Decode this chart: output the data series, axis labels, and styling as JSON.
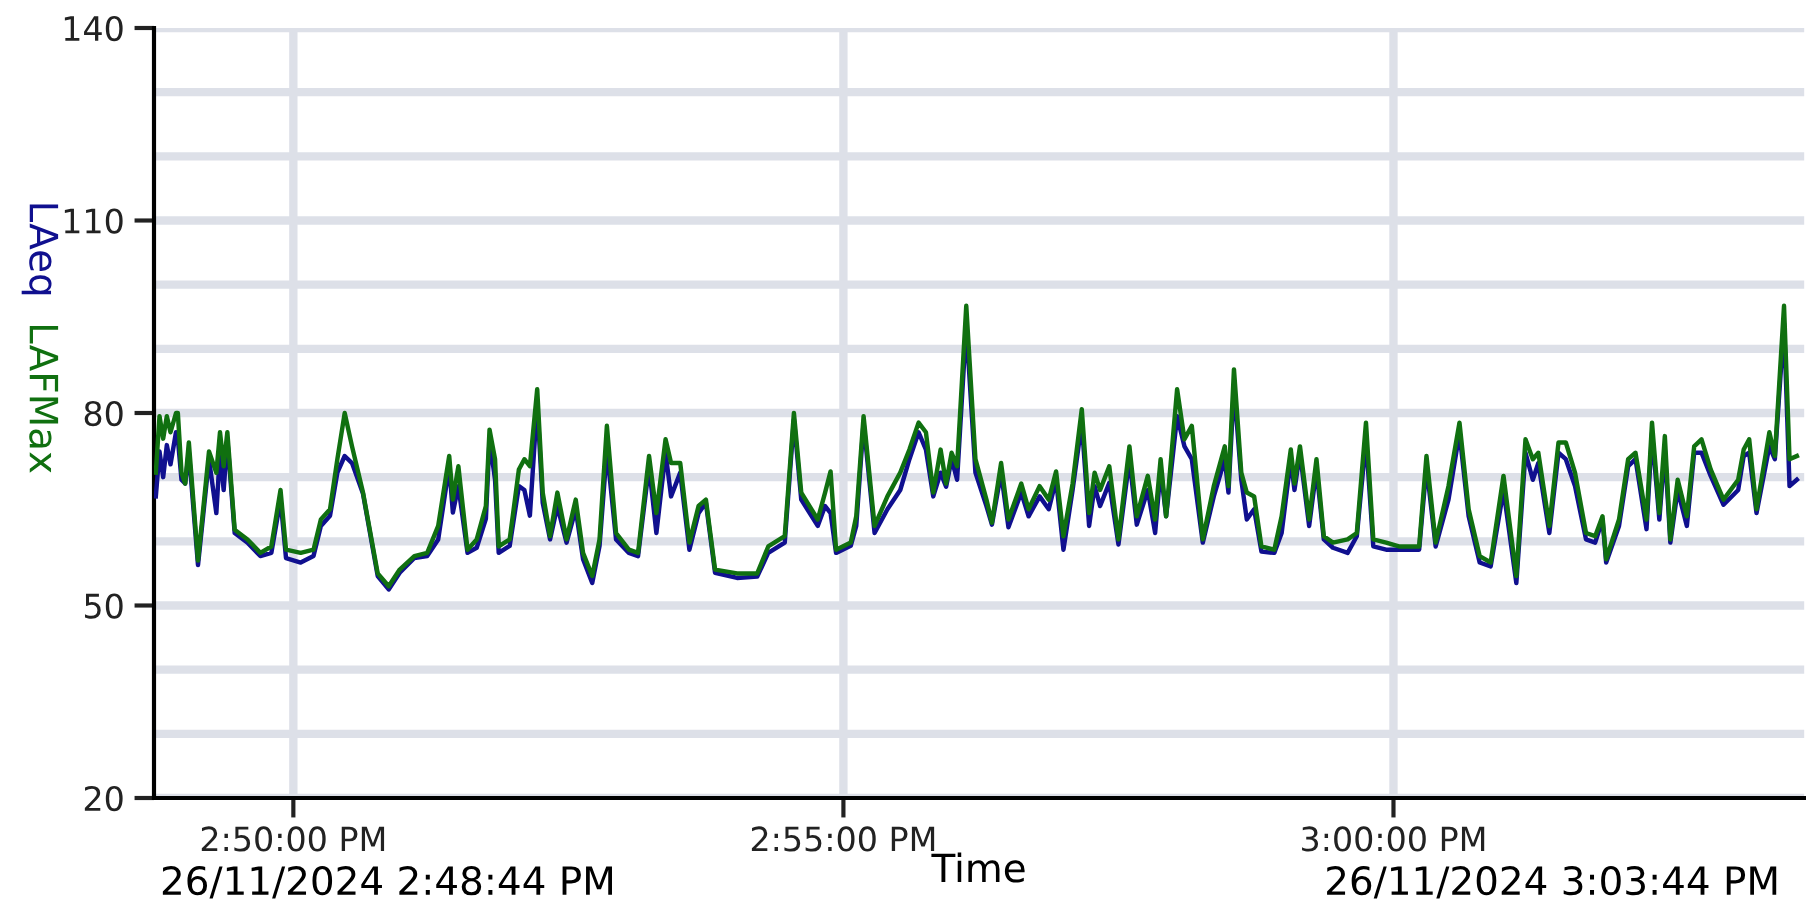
{
  "chart_data": {
    "type": "line",
    "xlabel": "Time",
    "annotations": [
      "26/11/2024 2:48:44 PM",
      "26/11/2024 3:03:44 PM"
    ],
    "x": [
      "2024-11-26T14:48:45",
      "2024-11-26T14:48:47",
      "2024-11-26T14:48:49",
      "2024-11-26T14:48:51",
      "2024-11-26T14:48:53",
      "2024-11-26T14:48:56",
      "2024-11-26T14:48:57",
      "2024-11-26T14:48:59",
      "2024-11-26T14:49:01",
      "2024-11-26T14:49:03",
      "2024-11-26T14:49:08",
      "2024-11-26T14:49:14",
      "2024-11-26T14:49:18",
      "2024-11-26T14:49:20",
      "2024-11-26T14:49:22",
      "2024-11-26T14:49:24",
      "2024-11-26T14:49:28",
      "2024-11-26T14:49:35",
      "2024-11-26T14:49:42",
      "2024-11-26T14:49:48",
      "2024-11-26T14:49:53",
      "2024-11-26T14:49:56",
      "2024-11-26T14:50:04",
      "2024-11-26T14:50:11",
      "2024-11-26T14:50:15",
      "2024-11-26T14:50:20",
      "2024-11-26T14:50:24",
      "2024-11-26T14:50:28",
      "2024-11-26T14:50:32",
      "2024-11-26T14:50:38",
      "2024-11-26T14:50:46",
      "2024-11-26T14:50:52",
      "2024-11-26T14:50:58",
      "2024-11-26T14:51:06",
      "2024-11-26T14:51:13",
      "2024-11-26T14:51:19",
      "2024-11-26T14:51:25",
      "2024-11-26T14:51:27",
      "2024-11-26T14:51:30",
      "2024-11-26T14:51:35",
      "2024-11-26T14:51:40",
      "2024-11-26T14:51:45",
      "2024-11-26T14:51:47",
      "2024-11-26T14:51:50",
      "2024-11-26T14:51:52",
      "2024-11-26T14:51:58",
      "2024-11-26T14:52:03",
      "2024-11-26T14:52:06",
      "2024-11-26T14:52:09",
      "2024-11-26T14:52:13",
      "2024-11-26T14:52:16",
      "2024-11-26T14:52:20",
      "2024-11-26T14:52:24",
      "2024-11-26T14:52:29",
      "2024-11-26T14:52:34",
      "2024-11-26T14:52:38",
      "2024-11-26T14:52:43",
      "2024-11-26T14:52:47",
      "2024-11-26T14:52:51",
      "2024-11-26T14:52:56",
      "2024-11-26T14:53:03",
      "2024-11-26T14:53:08",
      "2024-11-26T14:53:14",
      "2024-11-26T14:53:18",
      "2024-11-26T14:53:23",
      "2024-11-26T14:53:26",
      "2024-11-26T14:53:31",
      "2024-11-26T14:53:36",
      "2024-11-26T14:53:41",
      "2024-11-26T14:53:45",
      "2024-11-26T14:53:50",
      "2024-11-26T14:54:02",
      "2024-11-26T14:54:13",
      "2024-11-26T14:54:19",
      "2024-11-26T14:54:28",
      "2024-11-26T14:54:33",
      "2024-11-26T14:54:37",
      "2024-11-26T14:54:46",
      "2024-11-26T14:54:50",
      "2024-11-26T14:54:53",
      "2024-11-26T14:54:56",
      "2024-11-26T14:55:04",
      "2024-11-26T14:55:07",
      "2024-11-26T14:55:11",
      "2024-11-26T14:55:17",
      "2024-11-26T14:55:24",
      "2024-11-26T14:55:31",
      "2024-11-26T14:55:36",
      "2024-11-26T14:55:41",
      "2024-11-26T14:55:45",
      "2024-11-26T14:55:49",
      "2024-11-26T14:55:53",
      "2024-11-26T14:55:56",
      "2024-11-26T14:55:59",
      "2024-11-26T14:56:02",
      "2024-11-26T14:56:07",
      "2024-11-26T14:56:12",
      "2024-11-26T14:56:18",
      "2024-11-26T14:56:21",
      "2024-11-26T14:56:26",
      "2024-11-26T14:56:30",
      "2024-11-26T14:56:37",
      "2024-11-26T14:56:41",
      "2024-11-26T14:56:47",
      "2024-11-26T14:56:52",
      "2024-11-26T14:56:56",
      "2024-11-26T14:57:00",
      "2024-11-26T14:57:05",
      "2024-11-26T14:57:10",
      "2024-11-26T14:57:14",
      "2024-11-26T14:57:17",
      "2024-11-26T14:57:20",
      "2024-11-26T14:57:25",
      "2024-11-26T14:57:30",
      "2024-11-26T14:57:36",
      "2024-11-26T14:57:40",
      "2024-11-26T14:57:46",
      "2024-11-26T14:57:50",
      "2024-11-26T14:57:53",
      "2024-11-26T14:57:56",
      "2024-11-26T14:58:02",
      "2024-11-26T14:58:06",
      "2024-11-26T14:58:10",
      "2024-11-26T14:58:16",
      "2024-11-26T14:58:22",
      "2024-11-26T14:58:28",
      "2024-11-26T14:58:30",
      "2024-11-26T14:58:33",
      "2024-11-26T14:58:37",
      "2024-11-26T14:58:40",
      "2024-11-26T14:58:44",
      "2024-11-26T14:58:48",
      "2024-11-26T14:58:55",
      "2024-11-26T14:58:59",
      "2024-11-26T14:59:04",
      "2024-11-26T14:59:06",
      "2024-11-26T14:59:09",
      "2024-11-26T14:59:14",
      "2024-11-26T14:59:18",
      "2024-11-26T14:59:22",
      "2024-11-26T14:59:27",
      "2024-11-26T14:59:35",
      "2024-11-26T14:59:40",
      "2024-11-26T14:59:45",
      "2024-11-26T14:59:49",
      "2024-11-26T14:59:56",
      "2024-11-26T15:00:03",
      "2024-11-26T15:00:14",
      "2024-11-26T15:00:18",
      "2024-11-26T15:00:23",
      "2024-11-26T15:00:30",
      "2024-11-26T15:00:36",
      "2024-11-26T15:00:41",
      "2024-11-26T15:00:47",
      "2024-11-26T15:00:53",
      "2024-11-26T15:01:00",
      "2024-11-26T15:01:07",
      "2024-11-26T15:01:12",
      "2024-11-26T15:01:16",
      "2024-11-26T15:01:19",
      "2024-11-26T15:01:25",
      "2024-11-26T15:01:30",
      "2024-11-26T15:01:34",
      "2024-11-26T15:01:39",
      "2024-11-26T15:01:45",
      "2024-11-26T15:01:50",
      "2024-11-26T15:01:54",
      "2024-11-26T15:01:56",
      "2024-11-26T15:02:03",
      "2024-11-26T15:02:08",
      "2024-11-26T15:02:12",
      "2024-11-26T15:02:18",
      "2024-11-26T15:02:21",
      "2024-11-26T15:02:25",
      "2024-11-26T15:02:28",
      "2024-11-26T15:02:31",
      "2024-11-26T15:02:35",
      "2024-11-26T15:02:40",
      "2024-11-26T15:02:44",
      "2024-11-26T15:02:48",
      "2024-11-26T15:02:53",
      "2024-11-26T15:03:00",
      "2024-11-26T15:03:08",
      "2024-11-26T15:03:11",
      "2024-11-26T15:03:14",
      "2024-11-26T15:03:18",
      "2024-11-26T15:03:25",
      "2024-11-26T15:03:28",
      "2024-11-26T15:03:33",
      "2024-11-26T15:03:36",
      "2024-11-26T15:03:40"
    ],
    "series": [
      {
        "name": "LAeq",
        "color": "#10108f",
        "values": [
          67,
          74,
          70,
          75,
          72,
          77,
          76,
          69.6,
          69,
          74,
          56.3,
          72.8,
          64.4,
          74,
          68,
          75.9,
          61.3,
          59.8,
          57.7,
          58.2,
          66.5,
          57.4,
          56.7,
          57.7,
          62.4,
          64,
          70.7,
          73.3,
          72.2,
          67.4,
          54.6,
          52.5,
          55.1,
          57.4,
          57.7,
          60.3,
          71.7,
          64.5,
          68.6,
          58.2,
          59,
          63.5,
          75.9,
          69.6,
          58.2,
          59.3,
          68.6,
          68,
          64,
          81.6,
          66,
          60.3,
          65.5,
          59.8,
          65,
          57.2,
          53.5,
          59.3,
          74.3,
          60.3,
          58.2,
          57.7,
          71.7,
          61.3,
          73.8,
          67,
          70.7,
          58.7,
          64.4,
          66,
          55.1,
          54.3,
          54.5,
          58.2,
          59.8,
          79,
          66.5,
          62.4,
          65.5,
          64.4,
          58.2,
          59.3,
          62.4,
          78.5,
          61.3,
          65,
          68,
          72.8,
          77,
          74.3,
          67,
          70.7,
          68.5,
          72.8,
          69.6,
          93.6,
          70.7,
          65.5,
          62.6,
          70.7,
          62.2,
          67.6,
          63.9,
          67,
          65,
          69.6,
          58.7,
          68,
          78.5,
          62.4,
          68.6,
          65.5,
          69.1,
          59.5,
          72.8,
          62.6,
          68,
          61.3,
          71.2,
          63.9,
          79.5,
          74.8,
          72.8,
          59.8,
          67,
          72.8,
          67.6,
          84.2,
          69.6,
          63.4,
          65,
          58.4,
          58.2,
          61.3,
          72.8,
          68,
          73.8,
          62.4,
          71.2,
          60.3,
          59,
          58.2,
          60.8,
          75.9,
          59.2,
          58.7,
          58.7,
          58.7,
          71.7,
          59.2,
          66.5,
          76.9,
          63.9,
          56.7,
          56.1,
          68,
          53.5,
          73.8,
          69.6,
          72.2,
          61.3,
          73.8,
          72.8,
          68.6,
          60.3,
          59.8,
          63.4,
          56.7,
          62.4,
          71.7,
          72.8,
          61.9,
          76.9,
          63.4,
          74.3,
          59.8,
          68,
          62.4,
          73.8,
          73.8,
          70.2,
          65.7,
          68,
          73.3,
          73.8,
          64.4,
          74.8,
          72.8,
          94,
          68.6,
          69.6
        ]
      },
      {
        "name": "LAFMax",
        "color": "#107010",
        "values": [
          70.7,
          79.5,
          76,
          79.5,
          77,
          80,
          80,
          70.7,
          69,
          75.4,
          57,
          74,
          70.7,
          77,
          71.7,
          77,
          61.8,
          60.3,
          58.2,
          59.2,
          68,
          58.7,
          58.2,
          58.7,
          63.4,
          65,
          72.8,
          80,
          74.8,
          67.6,
          55,
          53,
          55.6,
          57.7,
          58.2,
          62.4,
          73.3,
          66.5,
          71.7,
          58.7,
          60.3,
          65.5,
          77.4,
          72.8,
          59.2,
          60.3,
          71.2,
          72.8,
          71.7,
          83.7,
          67.6,
          60.8,
          67.6,
          60.3,
          66.5,
          58.2,
          54.6,
          60.3,
          78,
          61.3,
          58.7,
          58.2,
          73.3,
          64.4,
          75.9,
          72.2,
          72.2,
          59.8,
          65.5,
          66.5,
          55.6,
          55,
          55,
          59.2,
          60.8,
          80,
          67.6,
          63.4,
          67.6,
          70.9,
          58.7,
          59.8,
          63.9,
          79.5,
          62.4,
          67,
          70.7,
          74.3,
          78.5,
          77,
          67.6,
          74.3,
          69,
          73.8,
          71.7,
          96.7,
          72.8,
          66.5,
          62.9,
          72.2,
          63.4,
          69,
          65,
          68.6,
          66.5,
          70.9,
          60.8,
          69,
          80.6,
          64.4,
          70.7,
          68,
          71.7,
          60.3,
          74.8,
          63.9,
          70.2,
          63.4,
          72.8,
          63.9,
          83.7,
          75.9,
          78,
          60.3,
          68.6,
          74.8,
          68.6,
          86.8,
          70.7,
          67.6,
          67,
          59.2,
          58.7,
          63.9,
          74.3,
          69,
          74.8,
          63.4,
          72.8,
          60.8,
          59.8,
          60.3,
          61.3,
          78.5,
          60.3,
          59.8,
          59.2,
          59.2,
          73.3,
          59.8,
          68.6,
          78.5,
          65,
          57.7,
          56.7,
          70.2,
          54.6,
          75.9,
          72.8,
          73.8,
          62.4,
          75.4,
          75.4,
          70.7,
          61.3,
          60.8,
          63.9,
          57.2,
          63.4,
          72.8,
          73.8,
          63.4,
          78.5,
          64.4,
          76.4,
          60.3,
          69.6,
          63.9,
          74.8,
          75.9,
          71.2,
          66.5,
          69.6,
          74.3,
          75.9,
          65,
          77,
          73.3,
          96.7,
          72.8,
          73.3
        ]
      }
    ],
    "xlim": [
      "2024-11-26T14:48:44",
      "2024-11-26T15:03:44"
    ],
    "xticks": [
      {
        "value": "2024-11-26T14:50:00",
        "label": "2:50:00 PM"
      },
      {
        "value": "2024-11-26T14:55:00",
        "label": "2:55:00 PM"
      },
      {
        "value": "2024-11-26T15:00:00",
        "label": "3:00:00 PM"
      }
    ],
    "ylim": [
      20,
      140
    ],
    "yticks": [
      20,
      {
        "value": 30,
        "label": null
      },
      {
        "value": 40,
        "label": null
      },
      50,
      {
        "value": 60,
        "label": null
      },
      {
        "value": 70,
        "label": null
      },
      80,
      {
        "value": 90,
        "label": null
      },
      {
        "value": 100,
        "label": null
      },
      110,
      {
        "value": 120,
        "label": null
      },
      {
        "value": 130,
        "label": null
      },
      140
    ],
    "grid": true,
    "legend": false,
    "marker": "none",
    "line_style": "solid"
  }
}
